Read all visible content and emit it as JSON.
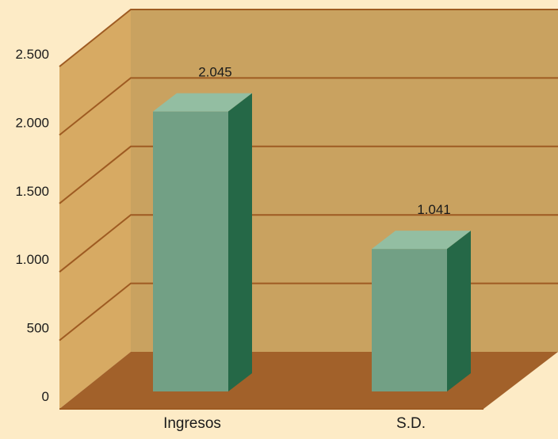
{
  "chart_data": {
    "type": "bar",
    "title": "",
    "xlabel": "",
    "ylabel": "",
    "categories": [
      "Ingresos",
      "S.D."
    ],
    "values": [
      2045,
      1041
    ],
    "value_labels": [
      "2.045",
      "1.041"
    ],
    "ylim": [
      0,
      2500
    ],
    "yticks": [
      0,
      500,
      1000,
      1500,
      2000,
      2500
    ],
    "ytick_labels": [
      "0",
      "500",
      "1.000",
      "1.500",
      "2.000",
      "2.500"
    ],
    "grid": true,
    "legend": "none",
    "three_d": true,
    "colors": {
      "page_background": "#fdebc6",
      "back_wall": "#c9a260",
      "side_wall": "#d7aa63",
      "floor": "#a2612a",
      "grid_line": "#9e5b22",
      "bar_front": "#72a085",
      "bar_top": "#93bea2",
      "bar_side": "#256847"
    }
  }
}
